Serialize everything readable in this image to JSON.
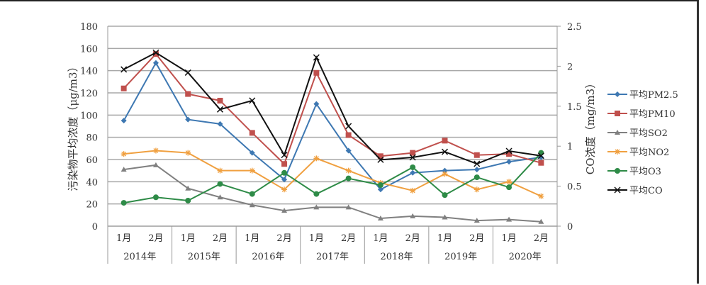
{
  "chart_data": {
    "type": "line",
    "categories": [
      "1月",
      "2月",
      "1月",
      "2月",
      "1月",
      "2月",
      "1月",
      "2月",
      "1月",
      "2月",
      "1月",
      "2月",
      "1月",
      "2月"
    ],
    "groups": [
      "2014年",
      "2015年",
      "2016年",
      "2017年",
      "2018年",
      "2019年",
      "2020年"
    ],
    "ylabel": "污染物平均浓度（μg/m3）",
    "y2label": "CO浓度（mg/m3）",
    "ylim": [
      0,
      180
    ],
    "y2lim": [
      0,
      2.5
    ],
    "yticks": [
      "0",
      "20",
      "40",
      "60",
      "80",
      "100",
      "120",
      "140",
      "160",
      "180"
    ],
    "y2ticks": [
      "0",
      "0.5",
      "1",
      "1.5",
      "2",
      "2.5"
    ],
    "grid": true,
    "legend_position": "right",
    "series": [
      {
        "name": "平均PM2.5",
        "axis": "left",
        "color": "#3e78b2",
        "marker": "diamond",
        "values": [
          95,
          147,
          96,
          92,
          66,
          42,
          110,
          68,
          33,
          48,
          50,
          51,
          58,
          62
        ]
      },
      {
        "name": "平均PM10",
        "axis": "left",
        "color": "#c0504d",
        "marker": "square",
        "values": [
          124,
          155,
          119,
          113,
          84,
          56,
          138,
          82,
          63,
          66,
          77,
          64,
          65,
          57
        ]
      },
      {
        "name": "平均SO2",
        "axis": "left",
        "color": "#808080",
        "marker": "triangle",
        "values": [
          51,
          55,
          34,
          26,
          19,
          14,
          17,
          17,
          7,
          9,
          8,
          5,
          6,
          4
        ]
      },
      {
        "name": "平均NO2",
        "axis": "left",
        "color": "#f0a040",
        "marker": "star",
        "values": [
          65,
          68,
          66,
          50,
          50,
          33,
          61,
          50,
          39,
          32,
          47,
          33,
          40,
          27
        ]
      },
      {
        "name": "平均O3",
        "axis": "left",
        "color": "#2e8b47",
        "marker": "circle",
        "values": [
          21,
          26,
          23,
          38,
          29,
          48,
          29,
          43,
          37,
          53,
          28,
          44,
          35,
          66
        ]
      },
      {
        "name": "平均CO",
        "axis": "right",
        "color": "#111111",
        "marker": "x",
        "values": [
          1.96,
          2.17,
          1.92,
          1.46,
          1.57,
          0.89,
          2.11,
          1.25,
          0.83,
          0.86,
          0.93,
          0.78,
          0.94,
          0.88
        ]
      }
    ]
  }
}
